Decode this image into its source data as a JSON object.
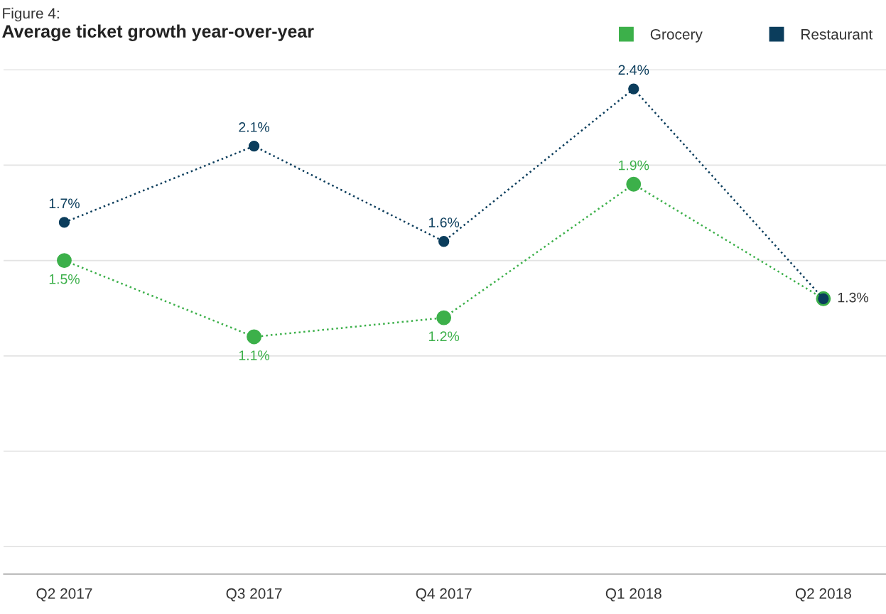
{
  "chart_data": {
    "type": "line",
    "subtitle": "Figure 4:",
    "title": "Average ticket growth year-over-year",
    "categories": [
      "Q2 2017",
      "Q3 2017",
      "Q4 2017",
      "Q1 2018",
      "Q2 2018"
    ],
    "series": [
      {
        "name": "Grocery",
        "color": "#3cb04a",
        "values": [
          1.5,
          1.1,
          1.2,
          1.9,
          1.3
        ],
        "value_labels": [
          "1.5%",
          "1.1%",
          "1.2%",
          "1.9%",
          null
        ]
      },
      {
        "name": "Restaurant",
        "color": "#0b3d5c",
        "values": [
          1.7,
          2.1,
          1.6,
          2.4,
          1.3
        ],
        "value_labels": [
          "1.7%",
          "2.1%",
          "1.6%",
          "2.4%",
          "1.3%"
        ]
      }
    ],
    "ref_lines": [
      {
        "axis": "y",
        "value": 0,
        "color": "#e3e3e3"
      },
      {
        "axis": "y",
        "value": 0.5,
        "color": "#e3e3e3"
      },
      {
        "axis": "y",
        "value": 1,
        "color": "#e3e3e3"
      },
      {
        "axis": "y",
        "value": 1.5,
        "color": "#e3e3e3"
      },
      {
        "axis": "y",
        "value": 2,
        "color": "#e3e3e3"
      },
      {
        "axis": "y",
        "value": 2.5,
        "color": "#e3e3e3"
      }
    ],
    "tick_labels": "x",
    "legend": "top right",
    "marker": "circle",
    "line_style": "dotted"
  }
}
